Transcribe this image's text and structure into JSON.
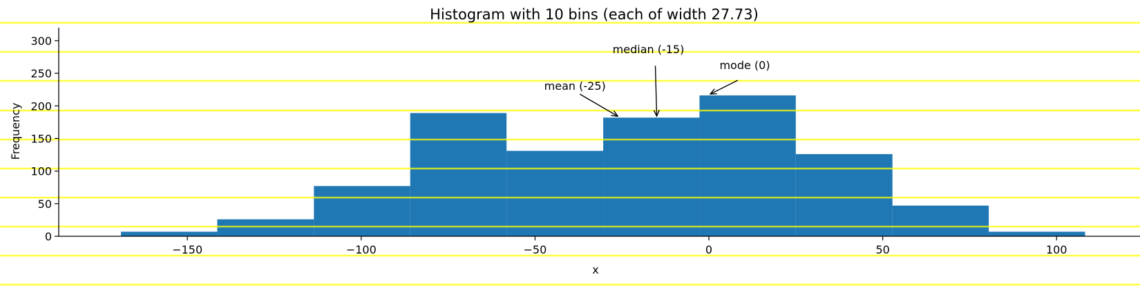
{
  "chart_data": {
    "type": "bar",
    "title": "Histogram with 10 bins (each of width 27.73)",
    "xlabel": "x",
    "ylabel": "Frequency",
    "xlim": [
      -187,
      124
    ],
    "ylim": [
      0,
      320
    ],
    "xticks": [
      -150,
      -100,
      -50,
      0,
      50,
      100
    ],
    "xtick_labels": [
      "−150",
      "−100",
      "−50",
      "0",
      "50",
      "100"
    ],
    "yticks": [
      0,
      50,
      100,
      150,
      200,
      250,
      300
    ],
    "ytick_labels": [
      "0",
      "50",
      "100",
      "150",
      "200",
      "250",
      "300"
    ],
    "bins": [
      {
        "x0": -169.1,
        "x1": -141.4,
        "count": 7
      },
      {
        "x0": -141.4,
        "x1": -113.6,
        "count": 26
      },
      {
        "x0": -113.6,
        "x1": -85.9,
        "count": 77
      },
      {
        "x0": -85.9,
        "x1": -58.2,
        "count": 189
      },
      {
        "x0": -58.2,
        "x1": -30.4,
        "count": 131
      },
      {
        "x0": -30.4,
        "x1": -2.7,
        "count": 182
      },
      {
        "x0": -2.7,
        "x1": 25.0,
        "count": 216
      },
      {
        "x0": 25.0,
        "x1": 52.8,
        "count": 126
      },
      {
        "x0": 52.8,
        "x1": 80.5,
        "count": 47
      },
      {
        "x0": 80.5,
        "x1": 108.2,
        "count": 7
      }
    ],
    "bar_color": "#1f77b4",
    "annotations": [
      {
        "label": "mean (-25)",
        "x": -25,
        "y": 182
      },
      {
        "label": "median (-15)",
        "x": -15,
        "y": 182
      },
      {
        "label": "mode (0)",
        "x": 0,
        "y": 216
      }
    ],
    "grid": {
      "orientation": "horizontal",
      "color": "#ffff00"
    },
    "spines": [
      "left",
      "bottom"
    ]
  }
}
